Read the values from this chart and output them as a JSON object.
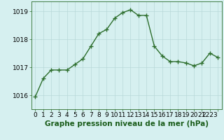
{
  "x": [
    0,
    1,
    2,
    3,
    4,
    5,
    6,
    7,
    8,
    9,
    10,
    11,
    12,
    13,
    14,
    15,
    16,
    17,
    18,
    19,
    20,
    21,
    22,
    23
  ],
  "y": [
    1015.95,
    1016.6,
    1016.9,
    1016.9,
    1016.9,
    1017.1,
    1017.3,
    1017.75,
    1018.2,
    1018.35,
    1018.75,
    1018.95,
    1019.05,
    1018.85,
    1018.85,
    1017.75,
    1017.4,
    1017.2,
    1017.2,
    1017.15,
    1017.05,
    1017.15,
    1017.5,
    1017.35
  ],
  "line_color": "#2d6e2d",
  "marker": "+",
  "marker_size": 4,
  "line_width": 1.0,
  "bg_color": "#d6f0f0",
  "grid_color": "#b8d8d8",
  "xlabel": "Graphe pression niveau de la mer (hPa)",
  "xlabel_fontsize": 7.5,
  "xlabel_color": "#1a5c1a",
  "ytick_labels": [
    "1016",
    "1017",
    "1018",
    "1019"
  ],
  "ytick_values": [
    1016,
    1017,
    1018,
    1019
  ],
  "ylim": [
    1015.5,
    1019.35
  ],
  "xlim": [
    -0.5,
    23.5
  ],
  "tick_fontsize": 6.5,
  "spine_color": "#2d6e2d"
}
